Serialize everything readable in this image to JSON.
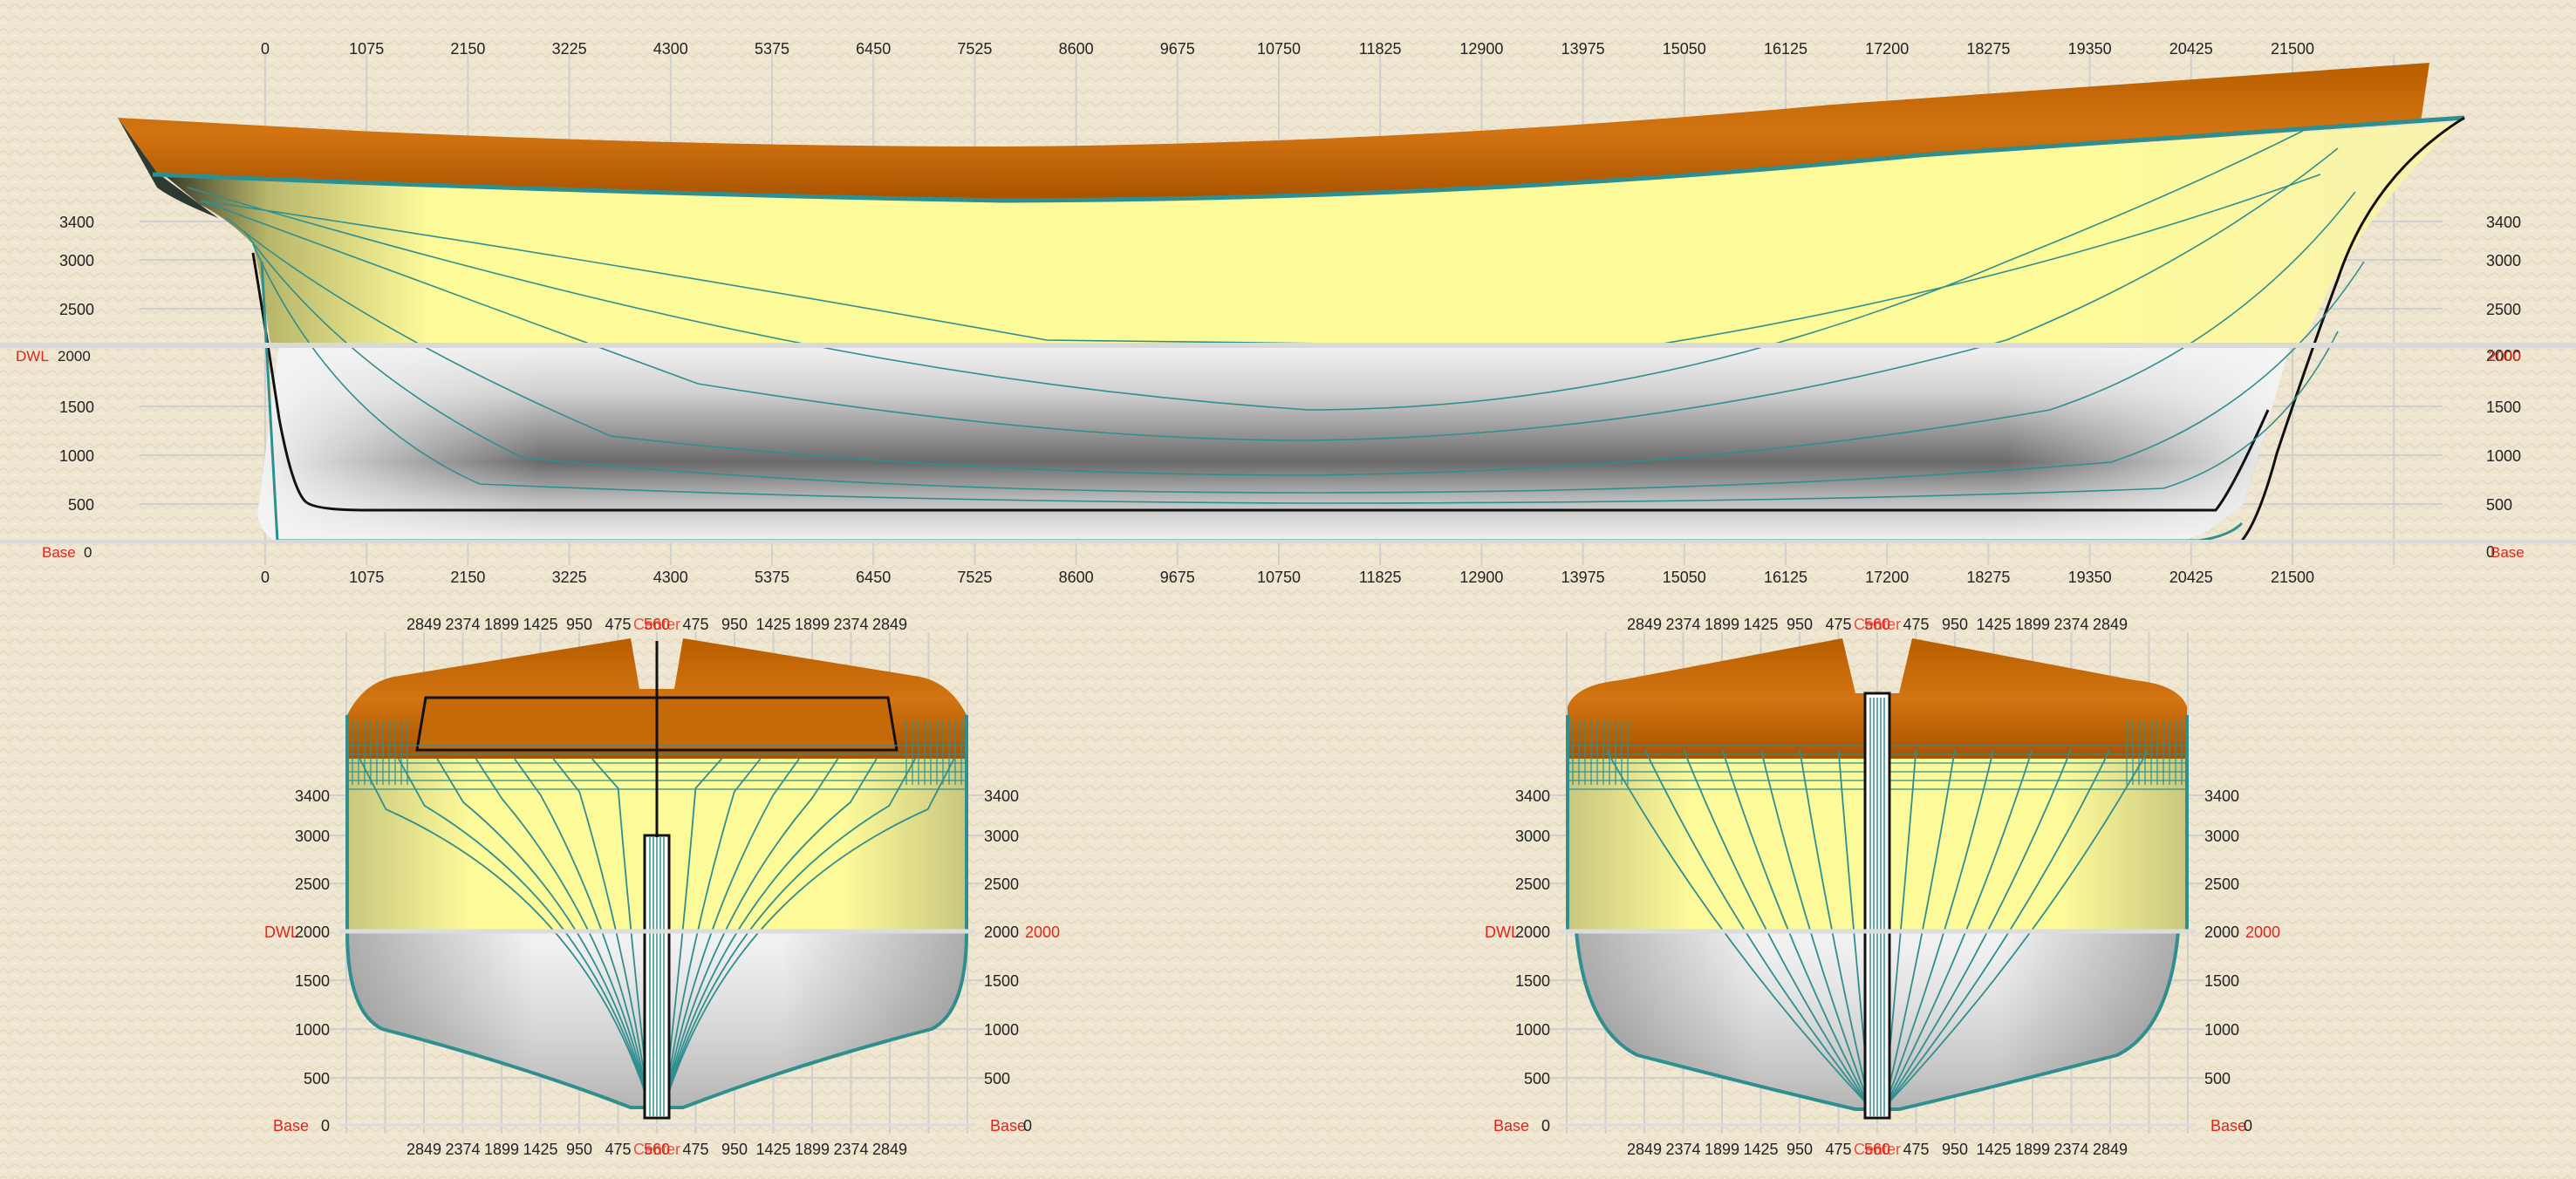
{
  "colors": {
    "background": "#efe6d1",
    "deck_brown": "#c76a06",
    "hull_yellow": "#fdfa9a",
    "hull_gray": "#9a9a9a",
    "waterline_teal": "#2f8f8f",
    "grid": "#cfcfcf",
    "label_red": "#e0241b"
  },
  "profile": {
    "top_ticks": [
      "0",
      "1075",
      "2150",
      "3225",
      "4300",
      "5375",
      "6450",
      "7525",
      "8600",
      "9675",
      "10750",
      "11825",
      "12900",
      "13975",
      "15050",
      "16125",
      "17200",
      "18275",
      "19350",
      "20425",
      "21500"
    ],
    "bottom_ticks": [
      "0",
      "1075",
      "2150",
      "3225",
      "4300",
      "5375",
      "6450",
      "7525",
      "8600",
      "9675",
      "10750",
      "11825",
      "12900",
      "13975",
      "15050",
      "16125",
      "17200",
      "18275",
      "19350",
      "20425",
      "21500"
    ],
    "height_ticks": [
      "3400",
      "3000",
      "2500",
      "1500",
      "1000",
      "500"
    ],
    "dwl_label": "DWL",
    "dwl_value": "2000",
    "base_label": "Base",
    "base_value": "0"
  },
  "section_views": [
    {
      "top_ticks": [
        "2849",
        "2374",
        "1899",
        "1425",
        "950",
        "475",
        "560",
        "475",
        "950",
        "1425",
        "1899",
        "2374",
        "2849"
      ],
      "bottom_ticks": [
        "2849",
        "2374",
        "1899",
        "1425",
        "950",
        "475",
        "560",
        "475",
        "950",
        "1425",
        "1899",
        "2374",
        "2849"
      ],
      "center_label": "Center",
      "height_ticks": [
        "3400",
        "3000",
        "2500",
        "1500",
        "1000",
        "500"
      ],
      "dwl_label": "DWL",
      "dwl_value": "2000",
      "base_label": "Base",
      "base_value": "0"
    },
    {
      "top_ticks": [
        "2849",
        "2374",
        "1899",
        "1425",
        "950",
        "475",
        "560",
        "475",
        "950",
        "1425",
        "1899",
        "2374",
        "2849"
      ],
      "bottom_ticks": [
        "2849",
        "2374",
        "1899",
        "1425",
        "950",
        "475",
        "560",
        "475",
        "950",
        "1425",
        "1899",
        "2374",
        "2849"
      ],
      "center_label": "Center",
      "height_ticks": [
        "3400",
        "3000",
        "2500",
        "1500",
        "1000",
        "500"
      ],
      "dwl_label": "DWL",
      "dwl_value": "2000",
      "base_label": "Base",
      "base_value": "0"
    }
  ]
}
